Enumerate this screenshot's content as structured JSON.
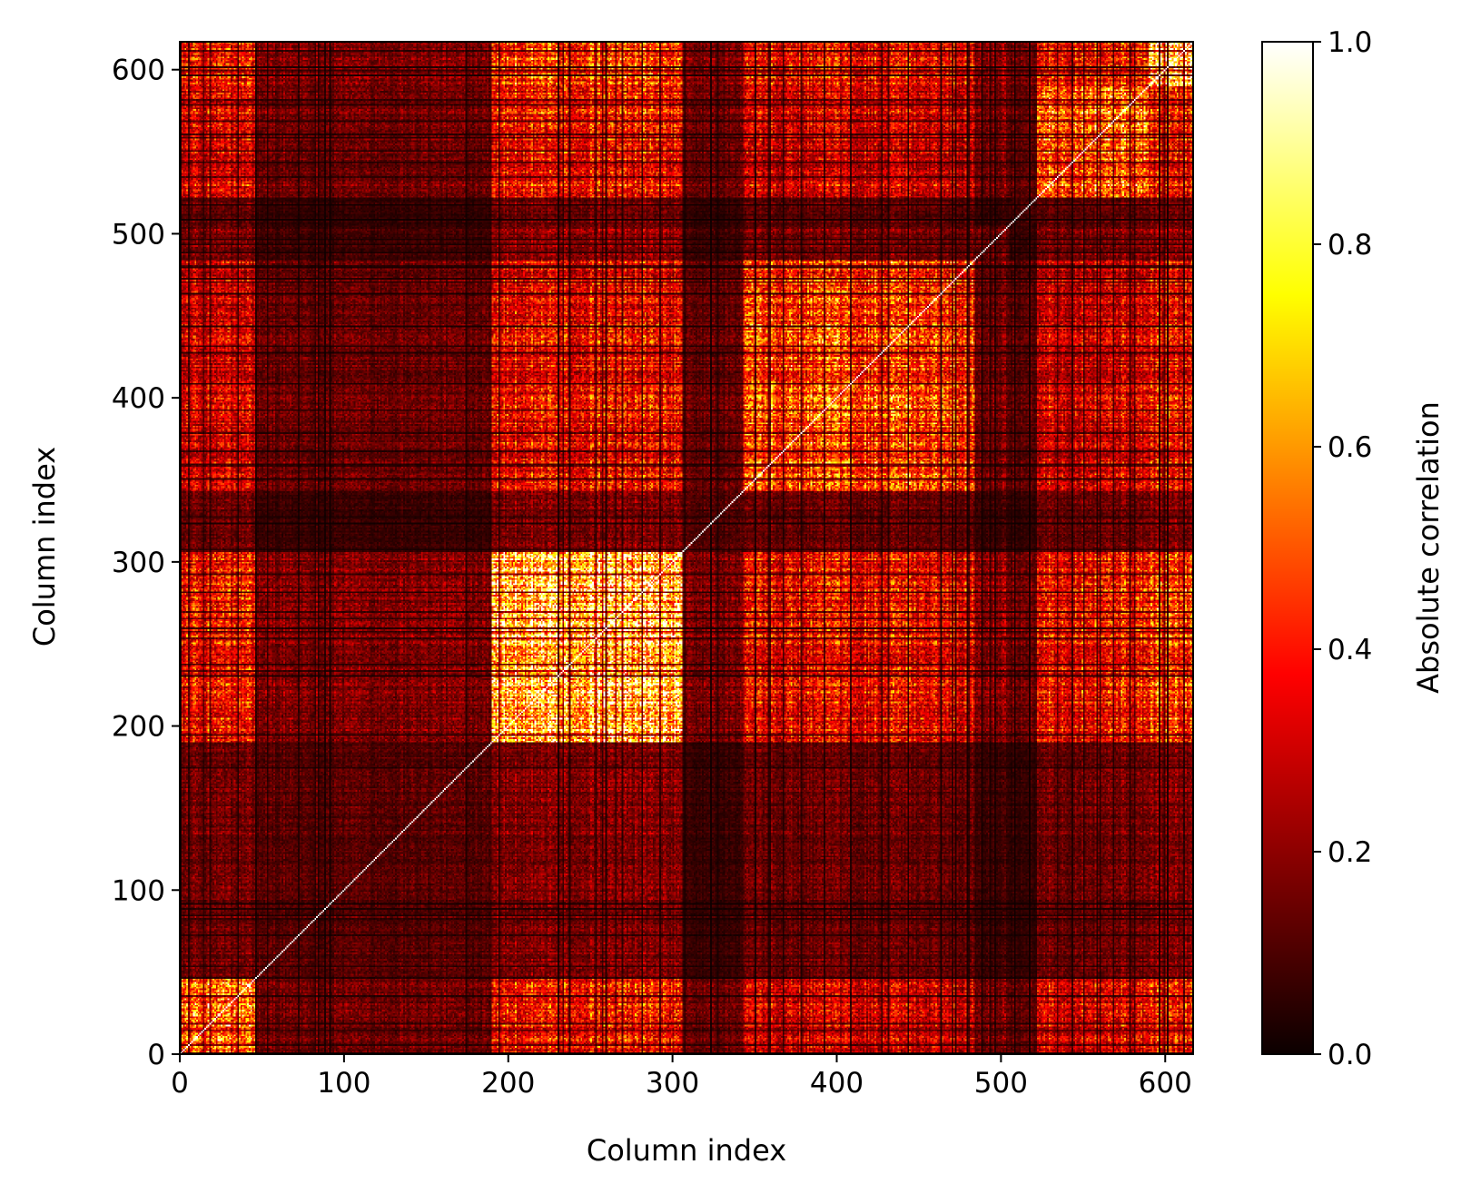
{
  "chart_data": {
    "type": "heatmap",
    "title": "",
    "xlabel": "Column index",
    "ylabel": "Column index",
    "xlim": [
      0,
      617
    ],
    "ylim": [
      0,
      617
    ],
    "x_ticks": [
      0,
      100,
      200,
      300,
      400,
      500,
      600
    ],
    "y_ticks": [
      0,
      100,
      200,
      300,
      400,
      500,
      600
    ],
    "n_columns": 617,
    "colormap": "hot",
    "colormap_stops": [
      "#0b0000",
      "#ff0000",
      "#ffff00",
      "#ffffff"
    ],
    "colorbar": {
      "label": "Absolute correlation",
      "range": [
        0.0,
        1.0
      ],
      "ticks": [
        "0.0",
        "0.2",
        "0.4",
        "0.6",
        "0.8",
        "1.0"
      ]
    },
    "diagonal_value": 1.0,
    "blocks": [
      {
        "range": [
          0,
          46
        ],
        "within_mean": 0.5
      },
      {
        "range": [
          46,
          190
        ],
        "within_mean": 0.12
      },
      {
        "range": [
          190,
          306
        ],
        "within_mean": 0.72
      },
      {
        "range": [
          306,
          343
        ],
        "within_mean": 0.1
      },
      {
        "range": [
          343,
          484
        ],
        "within_mean": 0.45
      },
      {
        "range": [
          484,
          505
        ],
        "within_mean": 0.15
      },
      {
        "range": [
          505,
          522
        ],
        "within_mean": 0.08
      },
      {
        "range": [
          522,
          590
        ],
        "within_mean": 0.55
      },
      {
        "range": [
          590,
          617
        ],
        "within_mean": 0.7
      }
    ],
    "grid": false,
    "legend": "none"
  }
}
